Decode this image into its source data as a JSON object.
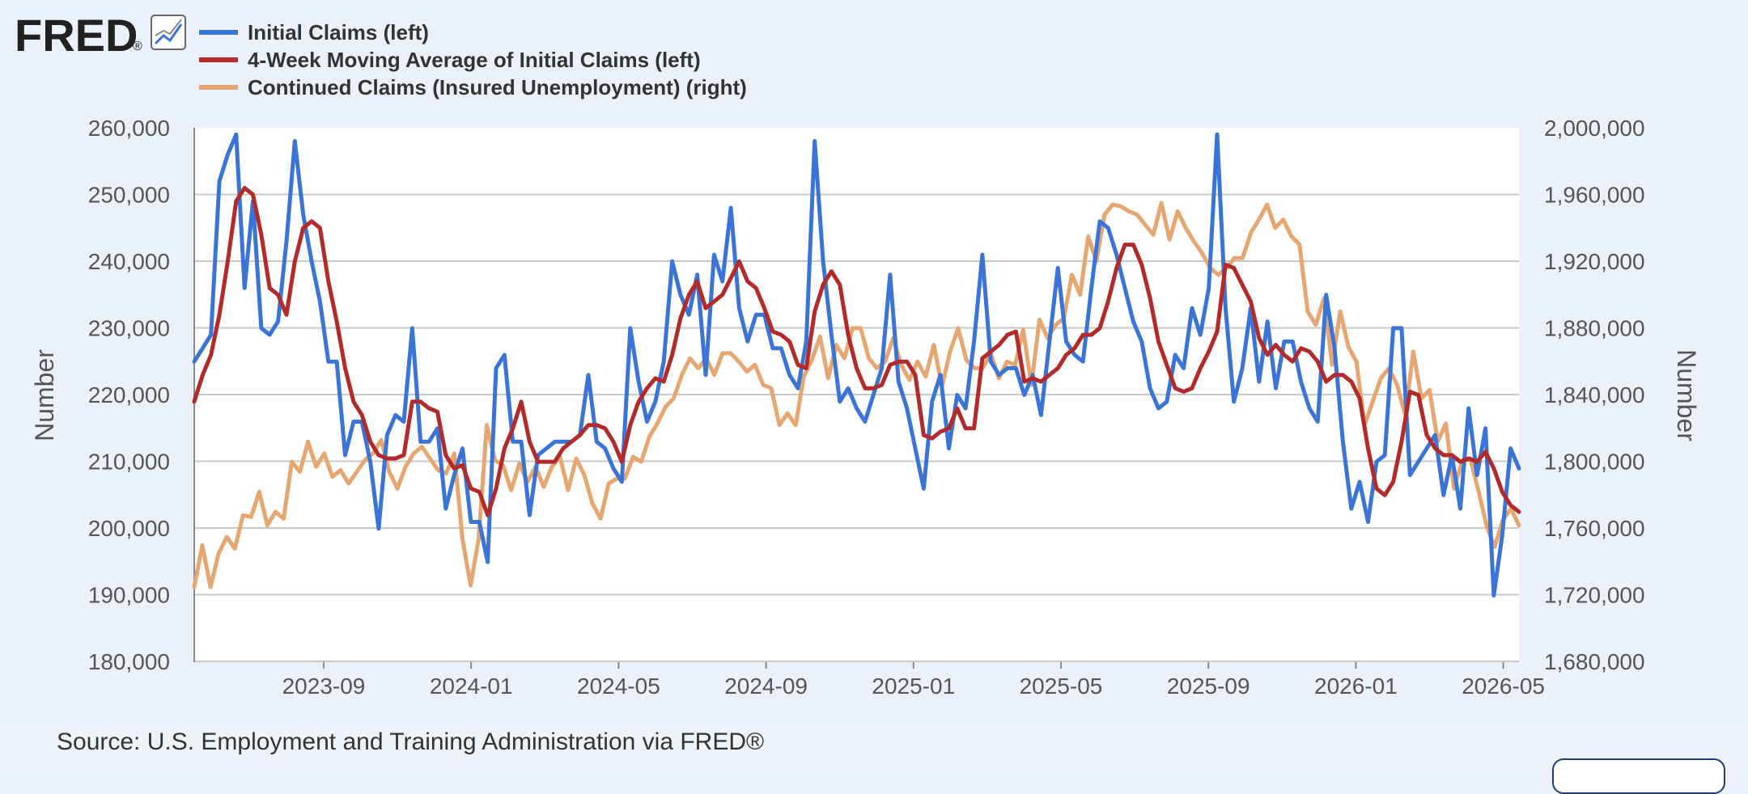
{
  "logo": {
    "text": "FRED",
    "reg": "®"
  },
  "source": {
    "text": "Source: U.S. Employment and Training Administration via FRED®"
  },
  "colors": {
    "initial_claims": "#3a74d6",
    "moving_average": "#b22a2a",
    "continued_claims": "#e5a672",
    "grid": "#c8c8c8",
    "plot_bg": "#ffffff",
    "page_bg": "#eaf1fb"
  },
  "chart_data": {
    "type": "line",
    "title": "",
    "xlabel": "",
    "ylabel_left": "Number",
    "ylabel_right": "Number",
    "ylim_left": [
      180000,
      260000
    ],
    "ylim_right": [
      1680000,
      2000000
    ],
    "grid": true,
    "legend_position": "top-left",
    "x_tick_labels": [
      "2023-09",
      "2024-01",
      "2024-05",
      "2024-09",
      "2025-01",
      "2025-05",
      "2025-09",
      "2026-01",
      "2026-05"
    ],
    "left_tick_labels": [
      "260,000",
      "250,000",
      "240,000",
      "230,000",
      "220,000",
      "210,000",
      "200,000",
      "190,000",
      "180,000"
    ],
    "right_tick_labels": [
      "2,000,000",
      "1,960,000",
      "1,920,000",
      "1,880,000",
      "1,840,000",
      "1,800,000",
      "1,760,000",
      "1,720,000",
      "1,680,000"
    ],
    "series": [
      {
        "name": "Initial Claims (left)",
        "axis": "left",
        "values": [
          225000,
          227000,
          229000,
          252000,
          256000,
          259000,
          236000,
          249000,
          230000,
          229000,
          231000,
          243000,
          258000,
          247000,
          240000,
          234000,
          225000,
          225000,
          211000,
          216000,
          216000,
          210000,
          200000,
          214000,
          217000,
          216000,
          230000,
          213000,
          213000,
          215000,
          203000,
          208000,
          212000,
          201000,
          201000,
          195000,
          224000,
          226000,
          213000,
          213000,
          202000,
          211000,
          212000,
          213000,
          213000,
          213000,
          214000,
          223000,
          213000,
          212000,
          209000,
          207000,
          230000,
          222000,
          216000,
          219000,
          225000,
          240000,
          235000,
          232000,
          238000,
          223000,
          241000,
          237000,
          248000,
          233000,
          228000,
          232000,
          232000,
          227000,
          227000,
          223000,
          221000,
          228000,
          258000,
          240000,
          229000,
          219000,
          221000,
          218000,
          216000,
          220000,
          224000,
          238000,
          222000,
          218000,
          212000,
          206000,
          219000,
          223000,
          212000,
          220000,
          218000,
          228000,
          241000,
          225000,
          223000,
          224000,
          224000,
          220000,
          223000,
          217000,
          228000,
          239000,
          228000,
          226000,
          225000,
          236000,
          246000,
          245000,
          241000,
          236000,
          231000,
          228000,
          221000,
          218000,
          219000,
          226000,
          224000,
          233000,
          229000,
          236000,
          259000,
          233000,
          219000,
          224000,
          233000,
          222000,
          231000,
          221000,
          228000,
          228000,
          222000,
          218000,
          216000,
          235000,
          227000,
          213000,
          203000,
          207000,
          201000,
          210000,
          211000,
          230000,
          230000,
          208000,
          210000,
          212000,
          214000,
          205000,
          211000,
          203000,
          218000,
          208000,
          215000,
          190000,
          199000,
          212000,
          209000
        ]
      },
      {
        "name": "4-Week Moving Average of Initial Claims (left)",
        "axis": "left",
        "values": [
          219000,
          223000,
          226000,
          232000,
          240000,
          249000,
          251000,
          250000,
          244000,
          236000,
          235000,
          232000,
          240000,
          245000,
          246000,
          245000,
          237000,
          231000,
          224000,
          219000,
          217000,
          213000,
          211000,
          210500,
          210500,
          211000,
          219000,
          219000,
          218000,
          217500,
          211000,
          209000,
          209500,
          206000,
          205500,
          202000,
          206000,
          212000,
          215000,
          219000,
          213000,
          210000,
          210000,
          210000,
          212000,
          213000,
          214000,
          215500,
          215500,
          215000,
          213000,
          210000,
          215500,
          219000,
          221000,
          222500,
          222000,
          226000,
          231500,
          235000,
          237000,
          233000,
          234000,
          235000,
          237500,
          240000,
          237000,
          236000,
          233000,
          229500,
          229000,
          228000,
          224500,
          224000,
          232500,
          236500,
          238500,
          236500,
          229000,
          224000,
          221000,
          221000,
          221500,
          224500,
          225000,
          225000,
          223000,
          214000,
          213500,
          214500,
          215000,
          218000,
          215000,
          215000,
          225500,
          226500,
          227500,
          229000,
          229500,
          222000,
          222500,
          222000,
          223000,
          224000,
          226000,
          227000,
          229000,
          229000,
          230000,
          234000,
          239000,
          242500,
          242500,
          239500,
          234500,
          228000,
          224500,
          221000,
          220500,
          221000,
          224000,
          226500,
          229500,
          239500,
          239000,
          236500,
          234000,
          228500,
          226000,
          227500,
          226000,
          225000,
          227000,
          226500,
          225000,
          222000,
          223000,
          223000,
          222000,
          219500,
          212000,
          206000,
          205000,
          207000,
          213000,
          220500,
          220000,
          214000,
          212000,
          211000,
          211000,
          210000,
          210500,
          210000,
          211500,
          209000,
          205500,
          203500,
          202500
        ]
      },
      {
        "name": "Continued Claims (Insured Unemployment) (right)",
        "axis": "right",
        "values": [
          1725000,
          1750000,
          1725000,
          1745000,
          1755000,
          1748000,
          1768000,
          1767000,
          1782000,
          1762000,
          1770000,
          1766000,
          1800000,
          1794000,
          1812000,
          1797000,
          1805000,
          1791000,
          1795000,
          1787000,
          1794000,
          1801000,
          1805000,
          1813000,
          1794000,
          1784000,
          1797000,
          1805000,
          1809000,
          1802000,
          1795000,
          1793000,
          1805000,
          1754000,
          1726000,
          1754000,
          1822000,
          1801000,
          1798000,
          1783000,
          1799000,
          1788000,
          1797000,
          1785000,
          1797000,
          1803000,
          1783000,
          1802000,
          1792000,
          1775000,
          1766000,
          1787000,
          1790000,
          1790000,
          1803000,
          1800000,
          1815000,
          1823000,
          1833000,
          1838000,
          1852000,
          1862000,
          1856000,
          1862000,
          1852000,
          1865000,
          1865000,
          1860000,
          1854000,
          1858000,
          1846000,
          1844000,
          1822000,
          1829000,
          1822000,
          1851000,
          1861000,
          1875000,
          1850000,
          1870000,
          1862000,
          1880000,
          1880000,
          1862000,
          1856000,
          1860000,
          1874000,
          1858000,
          1849000,
          1860000,
          1851000,
          1870000,
          1845000,
          1866000,
          1880000,
          1861000,
          1856000,
          1856000,
          1865000,
          1850000,
          1860000,
          1858000,
          1879000,
          1846000,
          1885000,
          1874000,
          1882000,
          1886000,
          1912000,
          1900000,
          1935000,
          1920000,
          1948000,
          1954000,
          1953000,
          1950000,
          1948000,
          1942000,
          1936000,
          1955000,
          1933000,
          1950000,
          1940000,
          1932000,
          1925000,
          1916000,
          1912000,
          1916000,
          1922000,
          1922000,
          1937000,
          1945000,
          1954000,
          1940000,
          1945000,
          1935000,
          1930000,
          1890000,
          1882000,
          1898000,
          1858000,
          1890000,
          1869000,
          1860000,
          1822000,
          1836000,
          1850000,
          1856000,
          1846000,
          1828000,
          1866000,
          1838000,
          1843000,
          1812000,
          1823000,
          1784000,
          1800000,
          1802000,
          1783000,
          1762000,
          1749000,
          1765000,
          1772000,
          1762000
        ]
      }
    ]
  }
}
